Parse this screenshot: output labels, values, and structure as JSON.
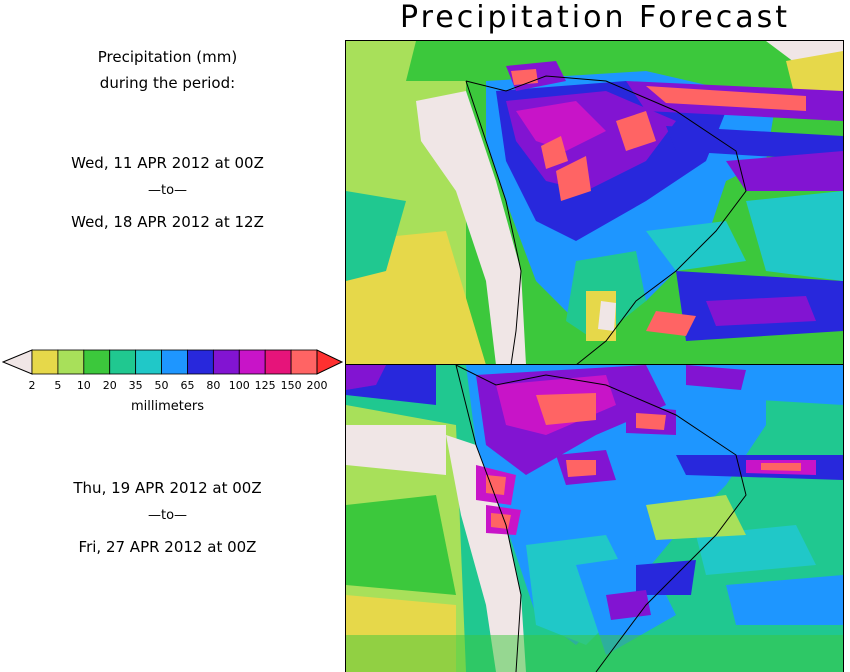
{
  "title": "Precipitation Forecast",
  "left_panel": {
    "heading_line1": "Precipitation (mm)",
    "heading_line2": "during the period:",
    "period1": {
      "start": "Wed, 11 APR 2012 at 00Z",
      "sep": "—to—",
      "end": "Wed, 18 APR 2012 at 12Z"
    },
    "period2": {
      "start": "Thu, 19 APR 2012 at 00Z",
      "sep": "—to—",
      "end": "Fri, 27 APR 2012 at 00Z"
    }
  },
  "colorbar": {
    "unit_label": "millimeters",
    "ticks": [
      "2",
      "5",
      "10",
      "20",
      "35",
      "50",
      "65",
      "80",
      "100",
      "125",
      "150",
      "200"
    ],
    "colors": [
      "#e6d84a",
      "#a8e05a",
      "#3cc83c",
      "#20c890",
      "#20c8c8",
      "#1e96ff",
      "#2828dc",
      "#8214d2",
      "#c814c8",
      "#e6147a",
      "#ff6464"
    ],
    "under_color": "#f0e6e6",
    "over_color": "#ff3030"
  },
  "map_colors": {
    "ocean_light": "#a8e05a",
    "dry": "#f0e6e6",
    "yellow": "#e6d84a",
    "green": "#3cc83c",
    "teal": "#20c890",
    "cyan": "#20c8c8",
    "blue": "#1e96ff",
    "navy": "#2828dc",
    "purple": "#8214d2",
    "magenta": "#c814c8",
    "pink": "#ff6464"
  }
}
